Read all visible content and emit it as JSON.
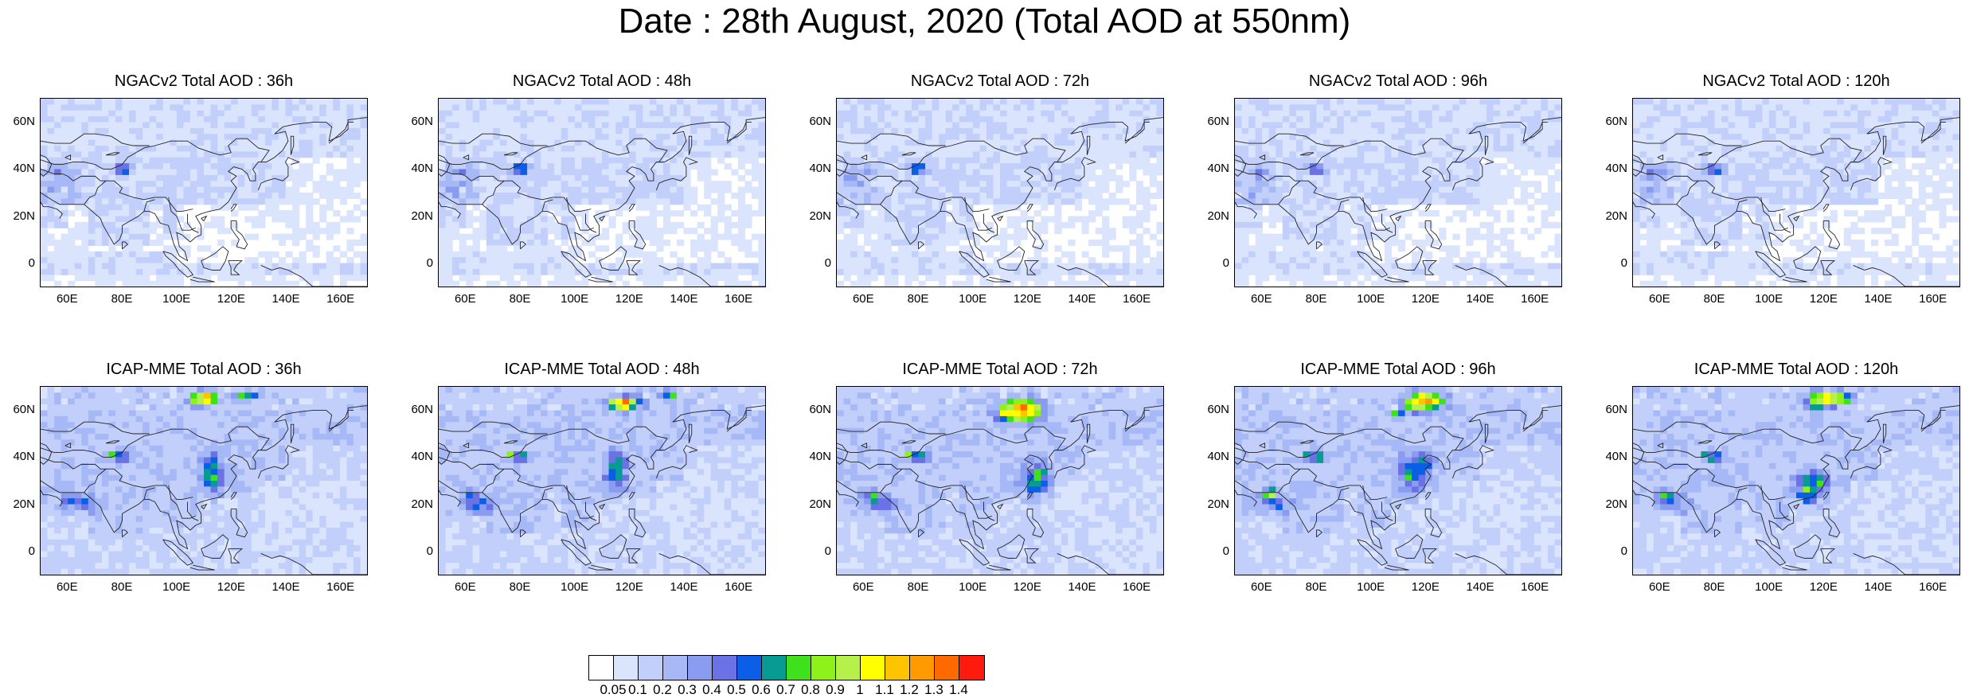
{
  "title": "Date : 28th August, 2020 (Total AOD at 550nm)",
  "panels": [
    {
      "title": "NGACv2 Total AOD : 36h",
      "model": "ngac",
      "lead": 36
    },
    {
      "title": "NGACv2 Total AOD : 48h",
      "model": "ngac",
      "lead": 48
    },
    {
      "title": "NGACv2 Total AOD : 72h",
      "model": "ngac",
      "lead": 72
    },
    {
      "title": "NGACv2 Total AOD : 96h",
      "model": "ngac",
      "lead": 96
    },
    {
      "title": "NGACv2 Total AOD : 120h",
      "model": "ngac",
      "lead": 120
    },
    {
      "title": "ICAP-MME Total AOD : 36h",
      "model": "icap",
      "lead": 36
    },
    {
      "title": "ICAP-MME Total AOD : 48h",
      "model": "icap",
      "lead": 48
    },
    {
      "title": "ICAP-MME Total AOD : 72h",
      "model": "icap",
      "lead": 72
    },
    {
      "title": "ICAP-MME Total AOD : 96h",
      "model": "icap",
      "lead": 96
    },
    {
      "title": "ICAP-MME Total AOD : 120h",
      "model": "icap",
      "lead": 120
    }
  ],
  "lat_labels": [
    "60N",
    "40N",
    "20N",
    "0"
  ],
  "lon_labels": [
    "60E",
    "80E",
    "100E",
    "120E",
    "140E",
    "160E"
  ],
  "colorbar": {
    "labels": [
      "0.05",
      "0.1",
      "0.2",
      "0.3",
      "0.4",
      "0.5",
      "0.6",
      "0.7",
      "0.8",
      "0.9",
      "1",
      "1.1",
      "1.2",
      "1.3",
      "1.4"
    ],
    "colors": [
      "#ffffff",
      "#dbe4fd",
      "#c1cffa",
      "#a6b8f6",
      "#8a9cf0",
      "#6a72e6",
      "#0a5fe6",
      "#089b93",
      "#3fe11c",
      "#8ef21a",
      "#b6f04a",
      "#ffff00",
      "#ffc400",
      "#ff9b00",
      "#ff6a00",
      "#ff1a0e"
    ]
  },
  "map_style": {
    "coast_color": "#222222",
    "land_color": "none"
  }
}
